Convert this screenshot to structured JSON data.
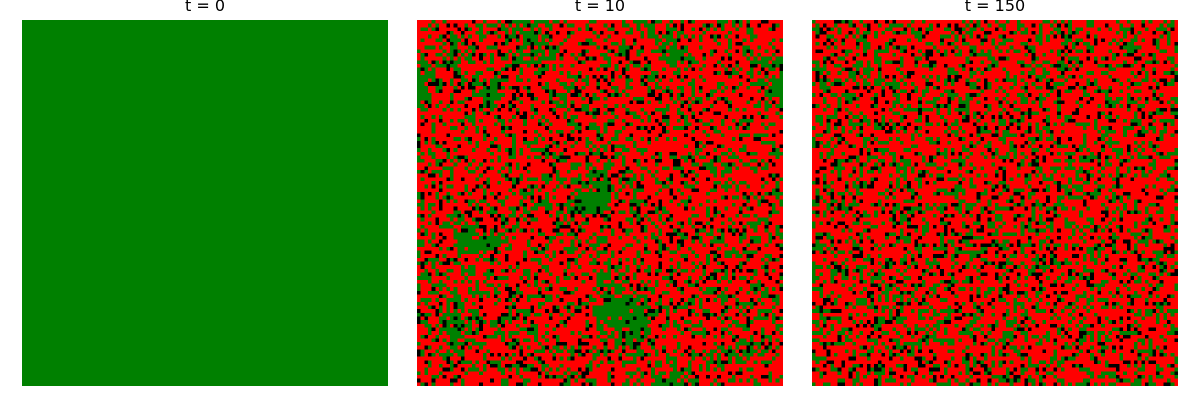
{
  "chart_data": [
    {
      "type": "heatmap",
      "title": "t = 0",
      "grid": false,
      "axes_visible": false,
      "state_colors": {
        "tree": "#008000",
        "burning": "#ff0000",
        "empty": "#000000"
      },
      "grid_size": [
        100,
        100
      ],
      "approx_fraction": {
        "tree": 1.0,
        "burning": 0.0,
        "empty": 0.0
      }
    },
    {
      "type": "heatmap",
      "title": "t = 10",
      "grid": false,
      "axes_visible": false,
      "state_colors": {
        "tree": "#008000",
        "burning": "#ff0000",
        "empty": "#000000"
      },
      "grid_size": [
        100,
        100
      ],
      "approx_fraction": {
        "tree": 0.33,
        "burning": 0.56,
        "empty": 0.11
      }
    },
    {
      "type": "heatmap",
      "title": "t = 150",
      "grid": false,
      "axes_visible": false,
      "state_colors": {
        "tree": "#008000",
        "burning": "#ff0000",
        "empty": "#000000"
      },
      "grid_size": [
        100,
        100
      ],
      "approx_fraction": {
        "tree": 0.36,
        "burning": 0.53,
        "empty": 0.11
      }
    }
  ]
}
